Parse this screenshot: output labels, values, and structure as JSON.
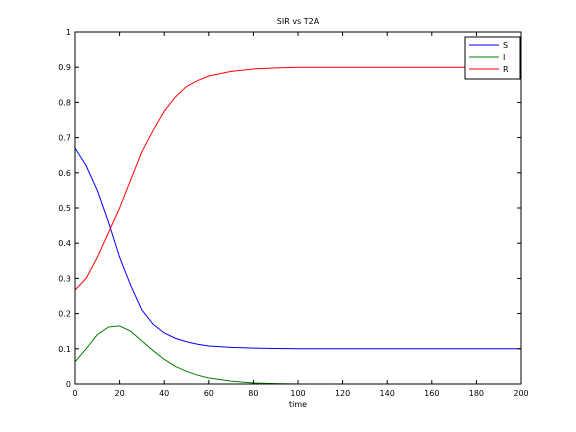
{
  "chart_data": {
    "type": "line",
    "title": "SIR vs T2A",
    "xlabel": "time",
    "ylabel": "",
    "xlim": [
      0,
      200
    ],
    "ylim": [
      0,
      1
    ],
    "x_ticks": [
      0,
      20,
      40,
      60,
      80,
      100,
      120,
      140,
      160,
      180,
      200
    ],
    "y_ticks": [
      0,
      0.1,
      0.2,
      0.3,
      0.4,
      0.5,
      0.6,
      0.7,
      0.8,
      0.9,
      1
    ],
    "grid": false,
    "legend_position": "top-right",
    "series": [
      {
        "name": "S",
        "color": "#0000ff",
        "x": [
          0,
          5,
          10,
          15,
          20,
          25,
          30,
          35,
          40,
          45,
          50,
          55,
          60,
          70,
          80,
          90,
          100,
          120,
          140,
          160,
          180,
          200
        ],
        "y": [
          0.67,
          0.62,
          0.55,
          0.46,
          0.36,
          0.28,
          0.21,
          0.17,
          0.145,
          0.13,
          0.12,
          0.113,
          0.108,
          0.104,
          0.102,
          0.101,
          0.1,
          0.1,
          0.1,
          0.1,
          0.1,
          0.1
        ]
      },
      {
        "name": "I",
        "color": "#008000",
        "x": [
          0,
          5,
          10,
          15,
          20,
          25,
          30,
          35,
          40,
          45,
          50,
          55,
          60,
          70,
          80,
          90,
          100,
          120,
          140,
          160,
          180,
          200
        ],
        "y": [
          0.063,
          0.1,
          0.14,
          0.162,
          0.165,
          0.15,
          0.122,
          0.095,
          0.07,
          0.05,
          0.036,
          0.025,
          0.017,
          0.008,
          0.003,
          0.001,
          0.0,
          0.0,
          0.0,
          0.0,
          0.0,
          0.0
        ]
      },
      {
        "name": "R",
        "color": "#ff0000",
        "x": [
          0,
          5,
          10,
          15,
          20,
          25,
          30,
          35,
          40,
          45,
          50,
          55,
          60,
          70,
          80,
          90,
          100,
          120,
          140,
          160,
          180,
          200
        ],
        "y": [
          0.267,
          0.3,
          0.36,
          0.43,
          0.5,
          0.58,
          0.66,
          0.72,
          0.775,
          0.815,
          0.845,
          0.862,
          0.875,
          0.888,
          0.895,
          0.898,
          0.9,
          0.9,
          0.9,
          0.9,
          0.9,
          0.9
        ]
      }
    ]
  }
}
